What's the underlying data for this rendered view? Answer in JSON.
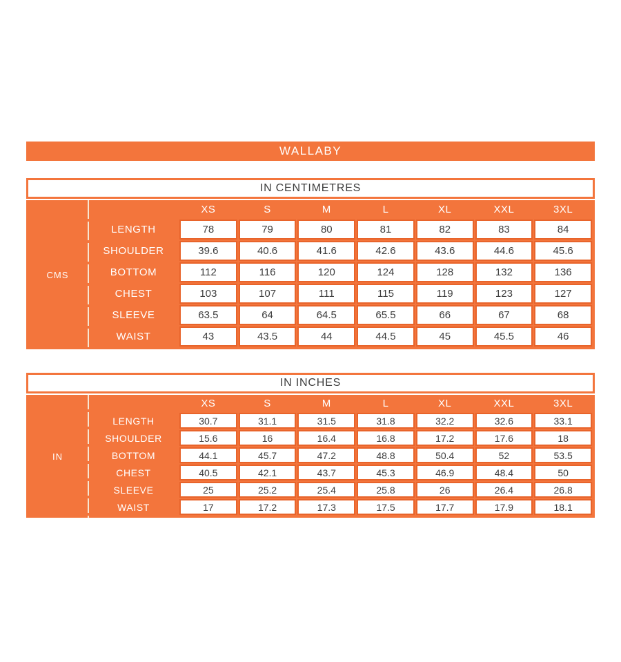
{
  "banner": {
    "title": "WALLABY"
  },
  "colors": {
    "orange": "#f3753c",
    "cell_border": "#e8642b",
    "dash_line": "#f7e6d2",
    "value_text": "#3d3d3d"
  },
  "sizes": [
    "XS",
    "S",
    "M",
    "L",
    "XL",
    "XXL",
    "3XL"
  ],
  "tables": [
    {
      "title": "IN CENTIMETRES",
      "unit_label": "CMS",
      "rows": [
        {
          "label": "LENGTH",
          "values": [
            "78",
            "79",
            "80",
            "81",
            "82",
            "83",
            "84"
          ]
        },
        {
          "label": "SHOULDER",
          "values": [
            "39.6",
            "40.6",
            "41.6",
            "42.6",
            "43.6",
            "44.6",
            "45.6"
          ]
        },
        {
          "label": "BOTTOM",
          "values": [
            "112",
            "116",
            "120",
            "124",
            "128",
            "132",
            "136"
          ]
        },
        {
          "label": "CHEST",
          "values": [
            "103",
            "107",
            "111",
            "115",
            "119",
            "123",
            "127"
          ]
        },
        {
          "label": "SLEEVE",
          "values": [
            "63.5",
            "64",
            "64.5",
            "65.5",
            "66",
            "67",
            "68"
          ]
        },
        {
          "label": "WAIST",
          "values": [
            "43",
            "43.5",
            "44",
            "44.5",
            "45",
            "45.5",
            "46"
          ]
        }
      ]
    },
    {
      "title": "IN INCHES",
      "unit_label": "IN",
      "rows": [
        {
          "label": "LENGTH",
          "values": [
            "30.7",
            "31.1",
            "31.5",
            "31.8",
            "32.2",
            "32.6",
            "33.1"
          ]
        },
        {
          "label": "SHOULDER",
          "values": [
            "15.6",
            "16",
            "16.4",
            "16.8",
            "17.2",
            "17.6",
            "18"
          ]
        },
        {
          "label": "BOTTOM",
          "values": [
            "44.1",
            "45.7",
            "47.2",
            "48.8",
            "50.4",
            "52",
            "53.5"
          ]
        },
        {
          "label": "CHEST",
          "values": [
            "40.5",
            "42.1",
            "43.7",
            "45.3",
            "46.9",
            "48.4",
            "50"
          ]
        },
        {
          "label": "SLEEVE",
          "values": [
            "25",
            "25.2",
            "25.4",
            "25.8",
            "26",
            "26.4",
            "26.8"
          ]
        },
        {
          "label": "WAIST",
          "values": [
            "17",
            "17.2",
            "17.3",
            "17.5",
            "17.7",
            "17.9",
            "18.1"
          ]
        }
      ]
    }
  ]
}
